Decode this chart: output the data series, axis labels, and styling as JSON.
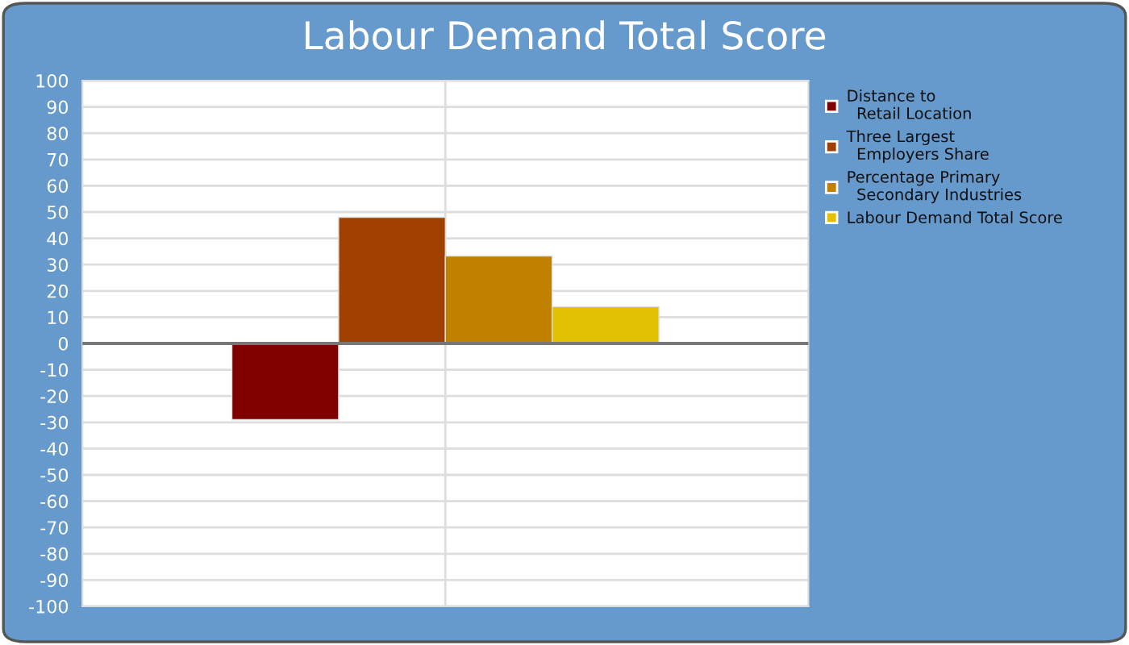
{
  "chart_data": {
    "type": "bar",
    "title": "Labour Demand Total Score",
    "categories": [
      null
    ],
    "series": [
      {
        "name": "Distance to\n  Retail Location",
        "color": "#800000",
        "values": [
          -29
        ]
      },
      {
        "name": "Three Largest\n  Employers Share",
        "color": "#a04000",
        "values": [
          48
        ]
      },
      {
        "name": "Percentage Primary\n  Secondary Industries",
        "color": "#c08000",
        "values": [
          33.3
        ]
      },
      {
        "name": "Labour Demand Total Score",
        "color": "#e0c000",
        "values": [
          14
        ]
      }
    ],
    "ylim": [
      -100,
      100
    ],
    "yticks": [
      -100,
      -90,
      -80,
      -70,
      -60,
      -50,
      -40,
      -30,
      -20,
      -10,
      0,
      10,
      20,
      30,
      40,
      50,
      60,
      70,
      80,
      90,
      100
    ],
    "grid": true,
    "legend": "right"
  }
}
